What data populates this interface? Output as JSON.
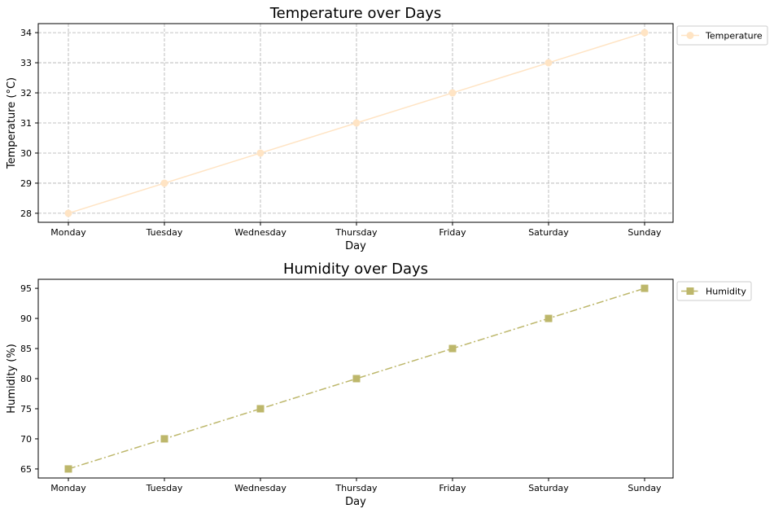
{
  "chart_data": [
    {
      "type": "line",
      "title": "Temperature over Days",
      "xlabel": "Day",
      "ylabel": "Temperature (°C)",
      "categories": [
        "Monday",
        "Tuesday",
        "Wednesday",
        "Thursday",
        "Friday",
        "Saturday",
        "Sunday"
      ],
      "series": [
        {
          "name": "Temperature",
          "values": [
            28,
            29,
            30,
            31,
            32,
            33,
            34
          ],
          "color": "#FFE4C4",
          "marker": "circle",
          "linestyle": "solid"
        }
      ],
      "ylim": [
        27.7,
        34.3
      ],
      "yticks": [
        28,
        29,
        30,
        31,
        32,
        33,
        34
      ],
      "grid": true,
      "legend": "outside-right"
    },
    {
      "type": "line",
      "title": "Humidity over Days",
      "xlabel": "Day",
      "ylabel": "Humidity (%)",
      "categories": [
        "Monday",
        "Tuesday",
        "Wednesday",
        "Thursday",
        "Friday",
        "Saturday",
        "Sunday"
      ],
      "series": [
        {
          "name": "Humidity",
          "values": [
            65,
            70,
            75,
            80,
            85,
            90,
            95
          ],
          "color": "#BDB76B",
          "marker": "square",
          "linestyle": "dashdot"
        }
      ],
      "ylim": [
        63.5,
        96.5
      ],
      "yticks": [
        65,
        70,
        75,
        80,
        85,
        90,
        95
      ],
      "grid": false,
      "legend": "outside-right"
    }
  ]
}
